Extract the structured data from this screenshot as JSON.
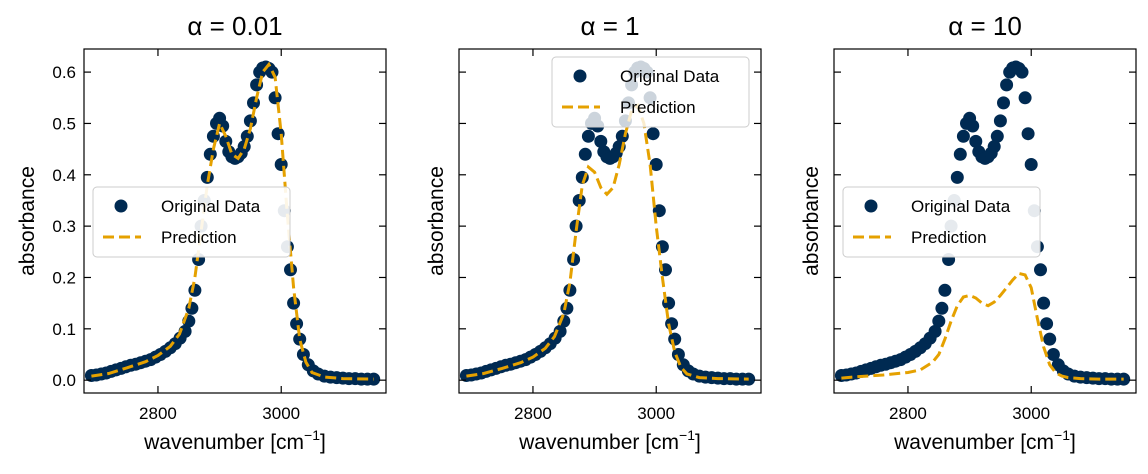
{
  "chart_data": [
    {
      "type": "scatter",
      "title": "α = 0.01",
      "xlabel": "wavenumber [cm",
      "xlabel_sup": "−1",
      "xlabel_end": "]",
      "ylabel": "absorbance",
      "xlim": [
        2680,
        3170
      ],
      "ylim": [
        -0.025,
        0.645
      ],
      "xticks": [
        2800,
        3000
      ],
      "xtick_labels": [
        "2800",
        "3000"
      ],
      "yticks": [
        0.0,
        0.1,
        0.2,
        0.3,
        0.4,
        0.5,
        0.6
      ],
      "ytick_labels": [
        "0.0",
        "0.1",
        "0.2",
        "0.3",
        "0.4",
        "0.5",
        "0.6"
      ],
      "show_ytick_labels": true,
      "legend": {
        "placement": "center-left",
        "alpha": 0.9
      },
      "series": [
        {
          "name": "Original Data",
          "kind": "scatter",
          "color": "#002a52",
          "x": [
            2692,
            2700,
            2708,
            2716,
            2724,
            2732,
            2740,
            2748,
            2756,
            2764,
            2772,
            2780,
            2788,
            2796,
            2804,
            2812,
            2820,
            2828,
            2836,
            2844,
            2850,
            2855,
            2860,
            2866,
            2870,
            2875,
            2880,
            2885,
            2890,
            2895,
            2900,
            2905,
            2910,
            2915,
            2920,
            2925,
            2930,
            2935,
            2940,
            2945,
            2950,
            2955,
            2960,
            2965,
            2970,
            2975,
            2980,
            2985,
            2990,
            2995,
            3000,
            3005,
            3010,
            3015,
            3020,
            3025,
            3030,
            3036,
            3044,
            3052,
            3060,
            3070,
            3080,
            3090,
            3100,
            3110,
            3120,
            3130,
            3140,
            3150
          ],
          "y": [
            0.009,
            0.01,
            0.012,
            0.014,
            0.017,
            0.02,
            0.023,
            0.026,
            0.029,
            0.031,
            0.034,
            0.037,
            0.04,
            0.045,
            0.05,
            0.056,
            0.063,
            0.071,
            0.082,
            0.095,
            0.115,
            0.14,
            0.175,
            0.235,
            0.3,
            0.35,
            0.395,
            0.44,
            0.475,
            0.5,
            0.51,
            0.495,
            0.465,
            0.445,
            0.435,
            0.432,
            0.435,
            0.442,
            0.455,
            0.475,
            0.505,
            0.54,
            0.575,
            0.6,
            0.608,
            0.61,
            0.607,
            0.6,
            0.55,
            0.48,
            0.42,
            0.33,
            0.26,
            0.215,
            0.15,
            0.11,
            0.08,
            0.05,
            0.03,
            0.018,
            0.012,
            0.008,
            0.006,
            0.005,
            0.004,
            0.003,
            0.003,
            0.002,
            0.002,
            0.002
          ]
        },
        {
          "name": "Prediction",
          "kind": "line",
          "color": "#e5a100",
          "x": [
            2692,
            2720,
            2750,
            2780,
            2800,
            2820,
            2835,
            2850,
            2860,
            2870,
            2880,
            2890,
            2900,
            2910,
            2920,
            2930,
            2940,
            2950,
            2960,
            2970,
            2980,
            2990,
            3000,
            3010,
            3020,
            3030,
            3040,
            3050,
            3070,
            3100,
            3150
          ],
          "y": [
            0.008,
            0.013,
            0.024,
            0.036,
            0.048,
            0.066,
            0.09,
            0.14,
            0.2,
            0.29,
            0.38,
            0.45,
            0.5,
            0.475,
            0.44,
            0.432,
            0.45,
            0.49,
            0.55,
            0.6,
            0.615,
            0.59,
            0.48,
            0.32,
            0.18,
            0.08,
            0.035,
            0.015,
            0.006,
            0.003,
            0.002
          ]
        }
      ]
    },
    {
      "type": "scatter",
      "title": "α = 1",
      "xlabel": "wavenumber [cm",
      "xlabel_sup": "−1",
      "xlabel_end": "]",
      "ylabel": "absorbance",
      "xlim": [
        2680,
        3170
      ],
      "ylim": [
        -0.025,
        0.645
      ],
      "xticks": [
        2800,
        3000
      ],
      "xtick_labels": [
        "2800",
        "3000"
      ],
      "yticks": [
        0.0,
        0.1,
        0.2,
        0.3,
        0.4,
        0.5,
        0.6
      ],
      "ytick_labels": [],
      "show_ytick_labels": false,
      "legend": {
        "placement": "upper-right",
        "alpha": 0.8
      },
      "series": [
        {
          "name": "Original Data",
          "kind": "scatter",
          "color": "#002a52",
          "x": [
            2692,
            2700,
            2708,
            2716,
            2724,
            2732,
            2740,
            2748,
            2756,
            2764,
            2772,
            2780,
            2788,
            2796,
            2804,
            2812,
            2820,
            2828,
            2836,
            2844,
            2850,
            2855,
            2860,
            2866,
            2870,
            2875,
            2880,
            2885,
            2890,
            2895,
            2900,
            2905,
            2910,
            2915,
            2920,
            2925,
            2930,
            2935,
            2940,
            2945,
            2950,
            2955,
            2960,
            2965,
            2970,
            2975,
            2980,
            2985,
            2990,
            2995,
            3000,
            3005,
            3010,
            3015,
            3020,
            3025,
            3030,
            3036,
            3044,
            3052,
            3060,
            3070,
            3080,
            3090,
            3100,
            3110,
            3120,
            3130,
            3140,
            3150
          ],
          "y": [
            0.009,
            0.01,
            0.012,
            0.014,
            0.017,
            0.02,
            0.023,
            0.026,
            0.029,
            0.031,
            0.034,
            0.037,
            0.04,
            0.045,
            0.05,
            0.056,
            0.063,
            0.071,
            0.082,
            0.095,
            0.115,
            0.14,
            0.175,
            0.235,
            0.3,
            0.35,
            0.395,
            0.44,
            0.475,
            0.5,
            0.51,
            0.495,
            0.465,
            0.445,
            0.435,
            0.432,
            0.435,
            0.442,
            0.455,
            0.475,
            0.505,
            0.54,
            0.575,
            0.6,
            0.608,
            0.61,
            0.607,
            0.6,
            0.55,
            0.48,
            0.42,
            0.33,
            0.26,
            0.215,
            0.15,
            0.11,
            0.08,
            0.05,
            0.03,
            0.018,
            0.012,
            0.008,
            0.006,
            0.005,
            0.004,
            0.003,
            0.003,
            0.002,
            0.002,
            0.002
          ]
        },
        {
          "name": "Prediction",
          "kind": "line",
          "color": "#e5a100",
          "x": [
            2692,
            2720,
            2750,
            2780,
            2800,
            2820,
            2835,
            2850,
            2860,
            2870,
            2880,
            2890,
            2900,
            2910,
            2920,
            2930,
            2940,
            2950,
            2960,
            2970,
            2980,
            2990,
            3000,
            3010,
            3020,
            3030,
            3040,
            3050,
            3070,
            3100,
            3150
          ],
          "y": [
            0.008,
            0.013,
            0.023,
            0.034,
            0.045,
            0.062,
            0.085,
            0.13,
            0.19,
            0.29,
            0.38,
            0.415,
            0.405,
            0.375,
            0.362,
            0.375,
            0.42,
            0.48,
            0.525,
            0.535,
            0.5,
            0.42,
            0.3,
            0.2,
            0.11,
            0.055,
            0.025,
            0.012,
            0.005,
            0.003,
            0.002
          ]
        }
      ]
    },
    {
      "type": "scatter",
      "title": "α = 10",
      "xlabel": "wavenumber [cm",
      "xlabel_sup": "−1",
      "xlabel_end": "]",
      "ylabel": "absorbance",
      "xlim": [
        2680,
        3170
      ],
      "ylim": [
        -0.025,
        0.645
      ],
      "xticks": [
        2800,
        3000
      ],
      "xtick_labels": [
        "2800",
        "3000"
      ],
      "yticks": [
        0.0,
        0.1,
        0.2,
        0.3,
        0.4,
        0.5,
        0.6
      ],
      "ytick_labels": [],
      "show_ytick_labels": false,
      "legend": {
        "placement": "center-left",
        "alpha": 0.9
      },
      "series": [
        {
          "name": "Original Data",
          "kind": "scatter",
          "color": "#002a52",
          "x": [
            2692,
            2700,
            2708,
            2716,
            2724,
            2732,
            2740,
            2748,
            2756,
            2764,
            2772,
            2780,
            2788,
            2796,
            2804,
            2812,
            2820,
            2828,
            2836,
            2844,
            2850,
            2855,
            2860,
            2866,
            2870,
            2875,
            2880,
            2885,
            2890,
            2895,
            2900,
            2905,
            2910,
            2915,
            2920,
            2925,
            2930,
            2935,
            2940,
            2945,
            2950,
            2955,
            2960,
            2965,
            2970,
            2975,
            2980,
            2985,
            2990,
            2995,
            3000,
            3005,
            3010,
            3015,
            3020,
            3025,
            3030,
            3036,
            3044,
            3052,
            3060,
            3070,
            3080,
            3090,
            3100,
            3110,
            3120,
            3130,
            3140,
            3150
          ],
          "y": [
            0.009,
            0.01,
            0.012,
            0.014,
            0.017,
            0.02,
            0.023,
            0.026,
            0.029,
            0.031,
            0.034,
            0.037,
            0.04,
            0.045,
            0.05,
            0.056,
            0.063,
            0.071,
            0.082,
            0.095,
            0.115,
            0.14,
            0.175,
            0.235,
            0.3,
            0.35,
            0.395,
            0.44,
            0.475,
            0.5,
            0.51,
            0.495,
            0.465,
            0.445,
            0.435,
            0.432,
            0.435,
            0.442,
            0.455,
            0.475,
            0.505,
            0.54,
            0.575,
            0.6,
            0.608,
            0.61,
            0.607,
            0.6,
            0.55,
            0.48,
            0.42,
            0.33,
            0.26,
            0.215,
            0.15,
            0.11,
            0.08,
            0.05,
            0.03,
            0.018,
            0.012,
            0.008,
            0.006,
            0.005,
            0.004,
            0.003,
            0.003,
            0.002,
            0.002,
            0.002
          ]
        },
        {
          "name": "Prediction",
          "kind": "line",
          "color": "#e5a100",
          "x": [
            2692,
            2720,
            2760,
            2800,
            2820,
            2840,
            2850,
            2860,
            2870,
            2880,
            2890,
            2900,
            2910,
            2920,
            2930,
            2940,
            2950,
            2960,
            2970,
            2980,
            2990,
            3000,
            3010,
            3020,
            3030,
            3040,
            3050,
            3060,
            3080,
            3110,
            3150
          ],
          "y": [
            0.004,
            0.007,
            0.01,
            0.015,
            0.02,
            0.035,
            0.05,
            0.08,
            0.115,
            0.145,
            0.162,
            0.165,
            0.16,
            0.15,
            0.145,
            0.152,
            0.165,
            0.18,
            0.195,
            0.208,
            0.205,
            0.18,
            0.12,
            0.065,
            0.03,
            0.014,
            0.008,
            0.005,
            0.003,
            0.002,
            0.002
          ]
        }
      ]
    }
  ]
}
